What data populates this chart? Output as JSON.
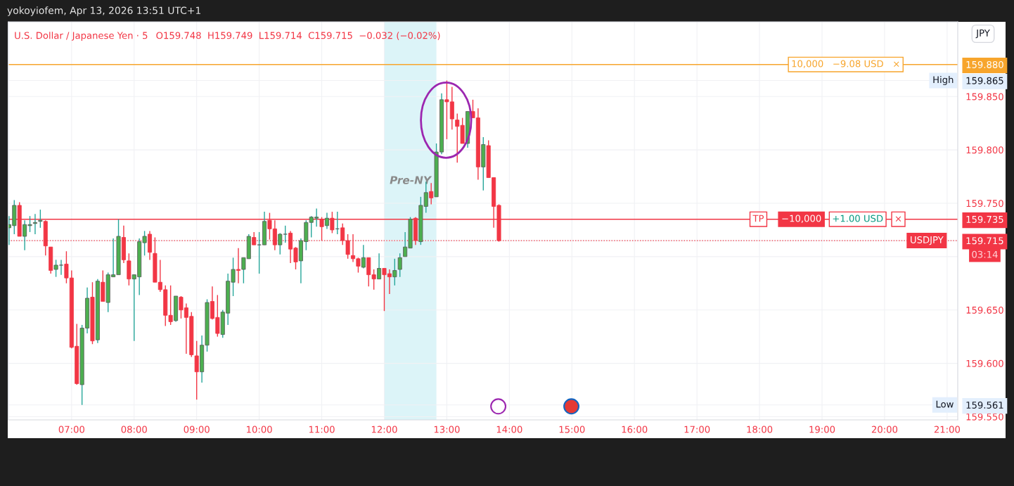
{
  "chart_data": {
    "type": "candlestick",
    "title": "U.S. Dollar / Japanese Yen · 5",
    "subtitle": "O159.748  H159.749  L159.714  C159.715  −0.032 (−0.02%)",
    "x": [
      6.0,
      6.0833,
      6.1667,
      6.25,
      6.3333,
      6.4167,
      6.5,
      6.5833,
      6.6667,
      6.75,
      6.8333,
      6.9167,
      7.0,
      7.0833,
      7.1667,
      7.25,
      7.3333,
      7.4167,
      7.5,
      7.5833,
      7.6667,
      7.75,
      7.8333,
      7.9167,
      8.0,
      8.0833,
      8.1667,
      8.25,
      8.3333,
      8.4167,
      8.5,
      8.5833,
      8.6667,
      8.75,
      8.8333,
      8.9167,
      9.0,
      9.0833,
      9.1667,
      9.25,
      9.3333,
      9.4167,
      9.5,
      9.5833,
      9.6667,
      9.75,
      9.8333,
      9.9167,
      10.0,
      10.0833,
      10.1667,
      10.25,
      10.3333,
      10.4167,
      10.5,
      10.5833,
      10.6667,
      10.75,
      10.8333,
      10.9167,
      11.0,
      11.0833,
      11.1667,
      11.25,
      11.3333,
      11.4167,
      11.5,
      11.5833,
      11.6667,
      11.75,
      11.8333,
      11.9167,
      12.0,
      12.0833,
      12.1667,
      12.25,
      12.3333,
      12.4167,
      12.5,
      12.5833,
      12.6667,
      12.75,
      12.8333,
      12.9167,
      13.0,
      13.0833,
      13.1667,
      13.25,
      13.3333,
      13.4167,
      13.5,
      13.5833,
      13.6667,
      13.75,
      13.8333
    ],
    "ohlc": [
      [
        159.727,
        159.738,
        159.711,
        159.73
      ],
      [
        159.729,
        159.753,
        159.721,
        159.748
      ],
      [
        159.748,
        159.751,
        159.719,
        159.719
      ],
      [
        159.719,
        159.734,
        159.706,
        159.73
      ],
      [
        159.729,
        159.738,
        159.723,
        159.73
      ],
      [
        159.731,
        159.74,
        159.721,
        159.732
      ],
      [
        159.733,
        159.744,
        159.727,
        159.734
      ],
      [
        159.733,
        159.734,
        159.701,
        159.71
      ],
      [
        159.709,
        159.709,
        159.684,
        159.687
      ],
      [
        159.688,
        159.697,
        159.681,
        159.692
      ],
      [
        159.692,
        159.697,
        159.683,
        159.692
      ],
      [
        159.693,
        159.705,
        159.675,
        159.68
      ],
      [
        159.68,
        159.687,
        159.614,
        159.615
      ],
      [
        159.616,
        159.637,
        159.58,
        159.581
      ],
      [
        159.58,
        159.636,
        159.561,
        159.633
      ],
      [
        159.633,
        159.671,
        159.628,
        159.661
      ],
      [
        159.662,
        159.676,
        159.618,
        159.621
      ],
      [
        159.622,
        159.679,
        159.619,
        159.677
      ],
      [
        159.676,
        159.687,
        159.658,
        159.658
      ],
      [
        159.657,
        159.685,
        159.648,
        159.683
      ],
      [
        159.681,
        159.717,
        159.681,
        159.683
      ],
      [
        159.683,
        159.735,
        159.683,
        159.719
      ],
      [
        159.718,
        159.729,
        159.694,
        159.697
      ],
      [
        159.696,
        159.703,
        159.673,
        159.679
      ],
      [
        159.679,
        159.683,
        159.621,
        159.683
      ],
      [
        159.681,
        159.717,
        159.664,
        159.714
      ],
      [
        159.713,
        159.724,
        159.701,
        159.719
      ],
      [
        159.721,
        159.724,
        159.697,
        159.704
      ],
      [
        159.703,
        159.718,
        159.676,
        159.676
      ],
      [
        159.676,
        159.697,
        159.667,
        159.669
      ],
      [
        159.669,
        159.673,
        159.635,
        159.645
      ],
      [
        159.645,
        159.673,
        159.636,
        159.639
      ],
      [
        159.64,
        159.663,
        159.639,
        159.663
      ],
      [
        159.662,
        159.663,
        159.642,
        159.65
      ],
      [
        159.652,
        159.656,
        159.609,
        159.643
      ],
      [
        159.644,
        159.648,
        159.606,
        159.608
      ],
      [
        159.607,
        159.621,
        159.566,
        159.592
      ],
      [
        159.592,
        159.626,
        159.582,
        159.617
      ],
      [
        159.617,
        159.66,
        159.611,
        159.657
      ],
      [
        159.658,
        159.672,
        159.641,
        159.642
      ],
      [
        159.643,
        159.664,
        159.625,
        159.628
      ],
      [
        159.627,
        159.65,
        159.624,
        159.648
      ],
      [
        159.647,
        159.684,
        159.636,
        159.677
      ],
      [
        159.676,
        159.699,
        159.663,
        159.688
      ],
      [
        159.688,
        159.708,
        159.675,
        159.687
      ],
      [
        159.688,
        159.699,
        159.675,
        159.699
      ],
      [
        159.698,
        159.721,
        159.698,
        159.719
      ],
      [
        159.718,
        159.723,
        159.711,
        159.711
      ],
      [
        159.711,
        159.723,
        159.684,
        159.711
      ],
      [
        159.711,
        159.742,
        159.711,
        159.733
      ],
      [
        159.734,
        159.741,
        159.716,
        159.726
      ],
      [
        159.726,
        159.734,
        159.706,
        159.711
      ],
      [
        159.711,
        159.722,
        159.702,
        159.721
      ],
      [
        159.721,
        159.729,
        159.713,
        159.721
      ],
      [
        159.722,
        159.724,
        159.694,
        159.707
      ],
      [
        159.708,
        159.709,
        159.688,
        159.695
      ],
      [
        159.696,
        159.717,
        159.675,
        159.715
      ],
      [
        159.714,
        159.734,
        159.706,
        159.732
      ],
      [
        159.732,
        159.738,
        159.718,
        159.737
      ],
      [
        159.736,
        159.745,
        159.728,
        159.737
      ],
      [
        159.735,
        159.737,
        159.715,
        159.728
      ],
      [
        159.729,
        159.741,
        159.726,
        159.736
      ],
      [
        159.736,
        159.742,
        159.722,
        159.725
      ],
      [
        159.726,
        159.742,
        159.721,
        159.726
      ],
      [
        159.727,
        159.731,
        159.711,
        159.715
      ],
      [
        159.715,
        159.721,
        159.698,
        159.702
      ],
      [
        159.701,
        159.721,
        159.695,
        159.698
      ],
      [
        159.698,
        159.699,
        159.685,
        159.691
      ],
      [
        159.69,
        159.711,
        159.689,
        159.699
      ],
      [
        159.699,
        159.699,
        159.672,
        159.683
      ],
      [
        159.683,
        159.688,
        159.669,
        159.679
      ],
      [
        159.679,
        159.703,
        159.679,
        159.689
      ],
      [
        159.689,
        159.689,
        159.649,
        159.683
      ],
      [
        159.684,
        159.688,
        159.665,
        159.681
      ],
      [
        159.681,
        159.698,
        159.673,
        159.687
      ],
      [
        159.688,
        159.703,
        159.681,
        159.699
      ],
      [
        159.7,
        159.723,
        159.7,
        159.709
      ],
      [
        159.708,
        159.737,
        159.708,
        159.735
      ],
      [
        159.736,
        159.737,
        159.711,
        159.715
      ],
      [
        159.714,
        159.756,
        159.711,
        159.748
      ],
      [
        159.747,
        159.77,
        159.741,
        159.76
      ],
      [
        159.761,
        159.769,
        159.749,
        159.755
      ],
      [
        159.756,
        159.806,
        159.756,
        159.798
      ],
      [
        159.798,
        159.853,
        159.796,
        159.847
      ],
      [
        159.847,
        159.865,
        159.81,
        159.845
      ],
      [
        159.845,
        159.859,
        159.819,
        159.829
      ],
      [
        159.828,
        159.834,
        159.788,
        159.822
      ],
      [
        159.823,
        159.83,
        159.806,
        159.806
      ],
      [
        159.806,
        159.836,
        159.802,
        159.836
      ],
      [
        159.836,
        159.847,
        159.83,
        159.83
      ],
      [
        159.83,
        159.839,
        159.772,
        159.784
      ],
      [
        159.784,
        159.812,
        159.762,
        159.805
      ],
      [
        159.804,
        159.809,
        159.774,
        159.774
      ],
      [
        159.774,
        159.774,
        159.727,
        159.747
      ],
      [
        159.748,
        159.749,
        159.714,
        159.715
      ]
    ],
    "xlim": [
      5.99,
      21.17
    ],
    "xticks": [
      {
        "value": 7,
        "label": "07:00"
      },
      {
        "value": 8,
        "label": "08:00"
      },
      {
        "value": 9,
        "label": "09:00"
      },
      {
        "value": 10,
        "label": "10:00"
      },
      {
        "value": 11,
        "label": "11:00"
      },
      {
        "value": 12,
        "label": "12:00"
      },
      {
        "value": 13,
        "label": "13:00"
      },
      {
        "value": 14,
        "label": "14:00"
      },
      {
        "value": 15,
        "label": "15:00"
      },
      {
        "value": 16,
        "label": "16:00"
      },
      {
        "value": 17,
        "label": "17:00"
      },
      {
        "value": 18,
        "label": "18:00"
      },
      {
        "value": 19,
        "label": "19:00"
      },
      {
        "value": 20,
        "label": "20:00"
      },
      {
        "value": 21,
        "label": "21:00"
      }
    ],
    "ylim": [
      159.547,
      159.92
    ],
    "yticks": [
      {
        "value": 159.55,
        "label": "159.550"
      },
      {
        "value": 159.561,
        "label": "159.561"
      },
      {
        "value": 159.6,
        "label": "159.600"
      },
      {
        "value": 159.65,
        "label": "159.650"
      },
      {
        "value": 159.7,
        "label": null
      },
      {
        "value": 159.715,
        "label": "159.715"
      },
      {
        "value": 159.735,
        "label": "159.735"
      },
      {
        "value": 159.75,
        "label": "159.750"
      },
      {
        "value": 159.8,
        "label": "159.800"
      },
      {
        "value": 159.85,
        "label": "159.850"
      },
      {
        "value": 159.865,
        "label": "159.865"
      },
      {
        "value": 159.88,
        "label": "159.880"
      }
    ],
    "grid": true,
    "ref_lines": [
      {
        "axis": "y",
        "value": 159.88,
        "label": "10,000   −9.08 USD   ×",
        "color": "#f7a52c",
        "line_style": "solid"
      },
      {
        "axis": "y",
        "value": 159.735,
        "label": "TP",
        "color": "#f23645",
        "line_style": "solid"
      },
      {
        "axis": "y",
        "value": 159.715,
        "label": "USDJPY",
        "color": "#f23645",
        "line_style": "dotted"
      }
    ],
    "bands": [
      {
        "axis": "x",
        "from": 12.0,
        "to": 12.8333,
        "label": "Pre-NY",
        "color": "#dcf4f8"
      }
    ],
    "annotations": [
      "yokoyiofem, Apr 13, 2026 13:51 UTC+1",
      "JPY",
      {
        "text": "High",
        "y": 159.865
      },
      {
        "text": "Low",
        "y": 159.561
      },
      {
        "text": "−10,000",
        "x": 18.67,
        "y": 159.735
      },
      {
        "text": "+1.00 USD",
        "x": 19.57,
        "y": 159.735
      },
      {
        "text": "×",
        "x": 20.22,
        "y": 159.735
      },
      "03:14"
    ]
  }
}
